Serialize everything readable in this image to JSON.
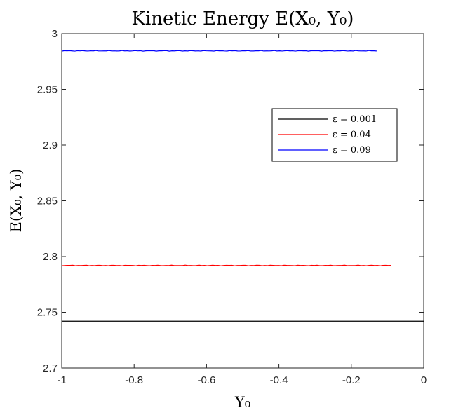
{
  "chart_data": {
    "type": "line",
    "title": "Kinetic Energy E(X₀, Y₀)",
    "xlabel": "Y₀",
    "ylabel": "E(X₀, Y₀)",
    "xlim": [
      -1,
      0
    ],
    "ylim": [
      2.7,
      3.0
    ],
    "xticks": [
      "-1",
      "-0.8",
      "-0.6",
      "-0.4",
      "-0.2",
      "0"
    ],
    "xtick_values": [
      -1,
      -0.8,
      -0.6,
      -0.4,
      -0.2,
      0
    ],
    "yticks": [
      "2.7",
      "2.75",
      "2.8",
      "2.85",
      "2.9",
      "2.95",
      "3"
    ],
    "ytick_values": [
      2.7,
      2.75,
      2.8,
      2.85,
      2.9,
      2.95,
      3.0
    ],
    "grid": false,
    "legend_position": "upper-right",
    "series": [
      {
        "name": "ε = 0.001",
        "color": "#000000",
        "x_range": [
          -1.0,
          0.0
        ],
        "y": 2.742
      },
      {
        "name": "ε = 0.04",
        "color": "#ff0000",
        "x_range": [
          -1.0,
          -0.09
        ],
        "y": 2.792
      },
      {
        "name": "ε = 0.09",
        "color": "#0000ff",
        "x_range": [
          -1.0,
          -0.13
        ],
        "y": 2.9845
      }
    ]
  }
}
